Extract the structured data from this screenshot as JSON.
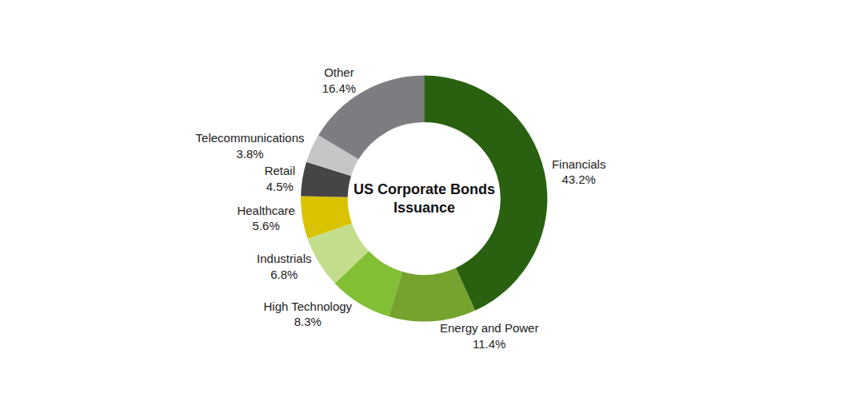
{
  "chart_data": {
    "type": "pie",
    "title": "US Corporate Bonds Issuance",
    "categories": [
      "Financials",
      "Energy and Power",
      "High Technology",
      "Industrials",
      "Healthcare",
      "Retail",
      "Telecommunications",
      "Other"
    ],
    "values": [
      43.2,
      11.4,
      8.3,
      6.8,
      5.6,
      4.5,
      3.8,
      16.4
    ],
    "value_labels": [
      "43.2%",
      "11.4%",
      "8.3%",
      "6.8%",
      "5.6%",
      "4.5%",
      "3.8%",
      "16.4%"
    ],
    "colors": [
      "#2a6110",
      "#76a22e",
      "#82bf34",
      "#c2de8c",
      "#d9c300",
      "#454545",
      "#c6c6c8",
      "#7c7d80"
    ],
    "data_labels": true
  }
}
